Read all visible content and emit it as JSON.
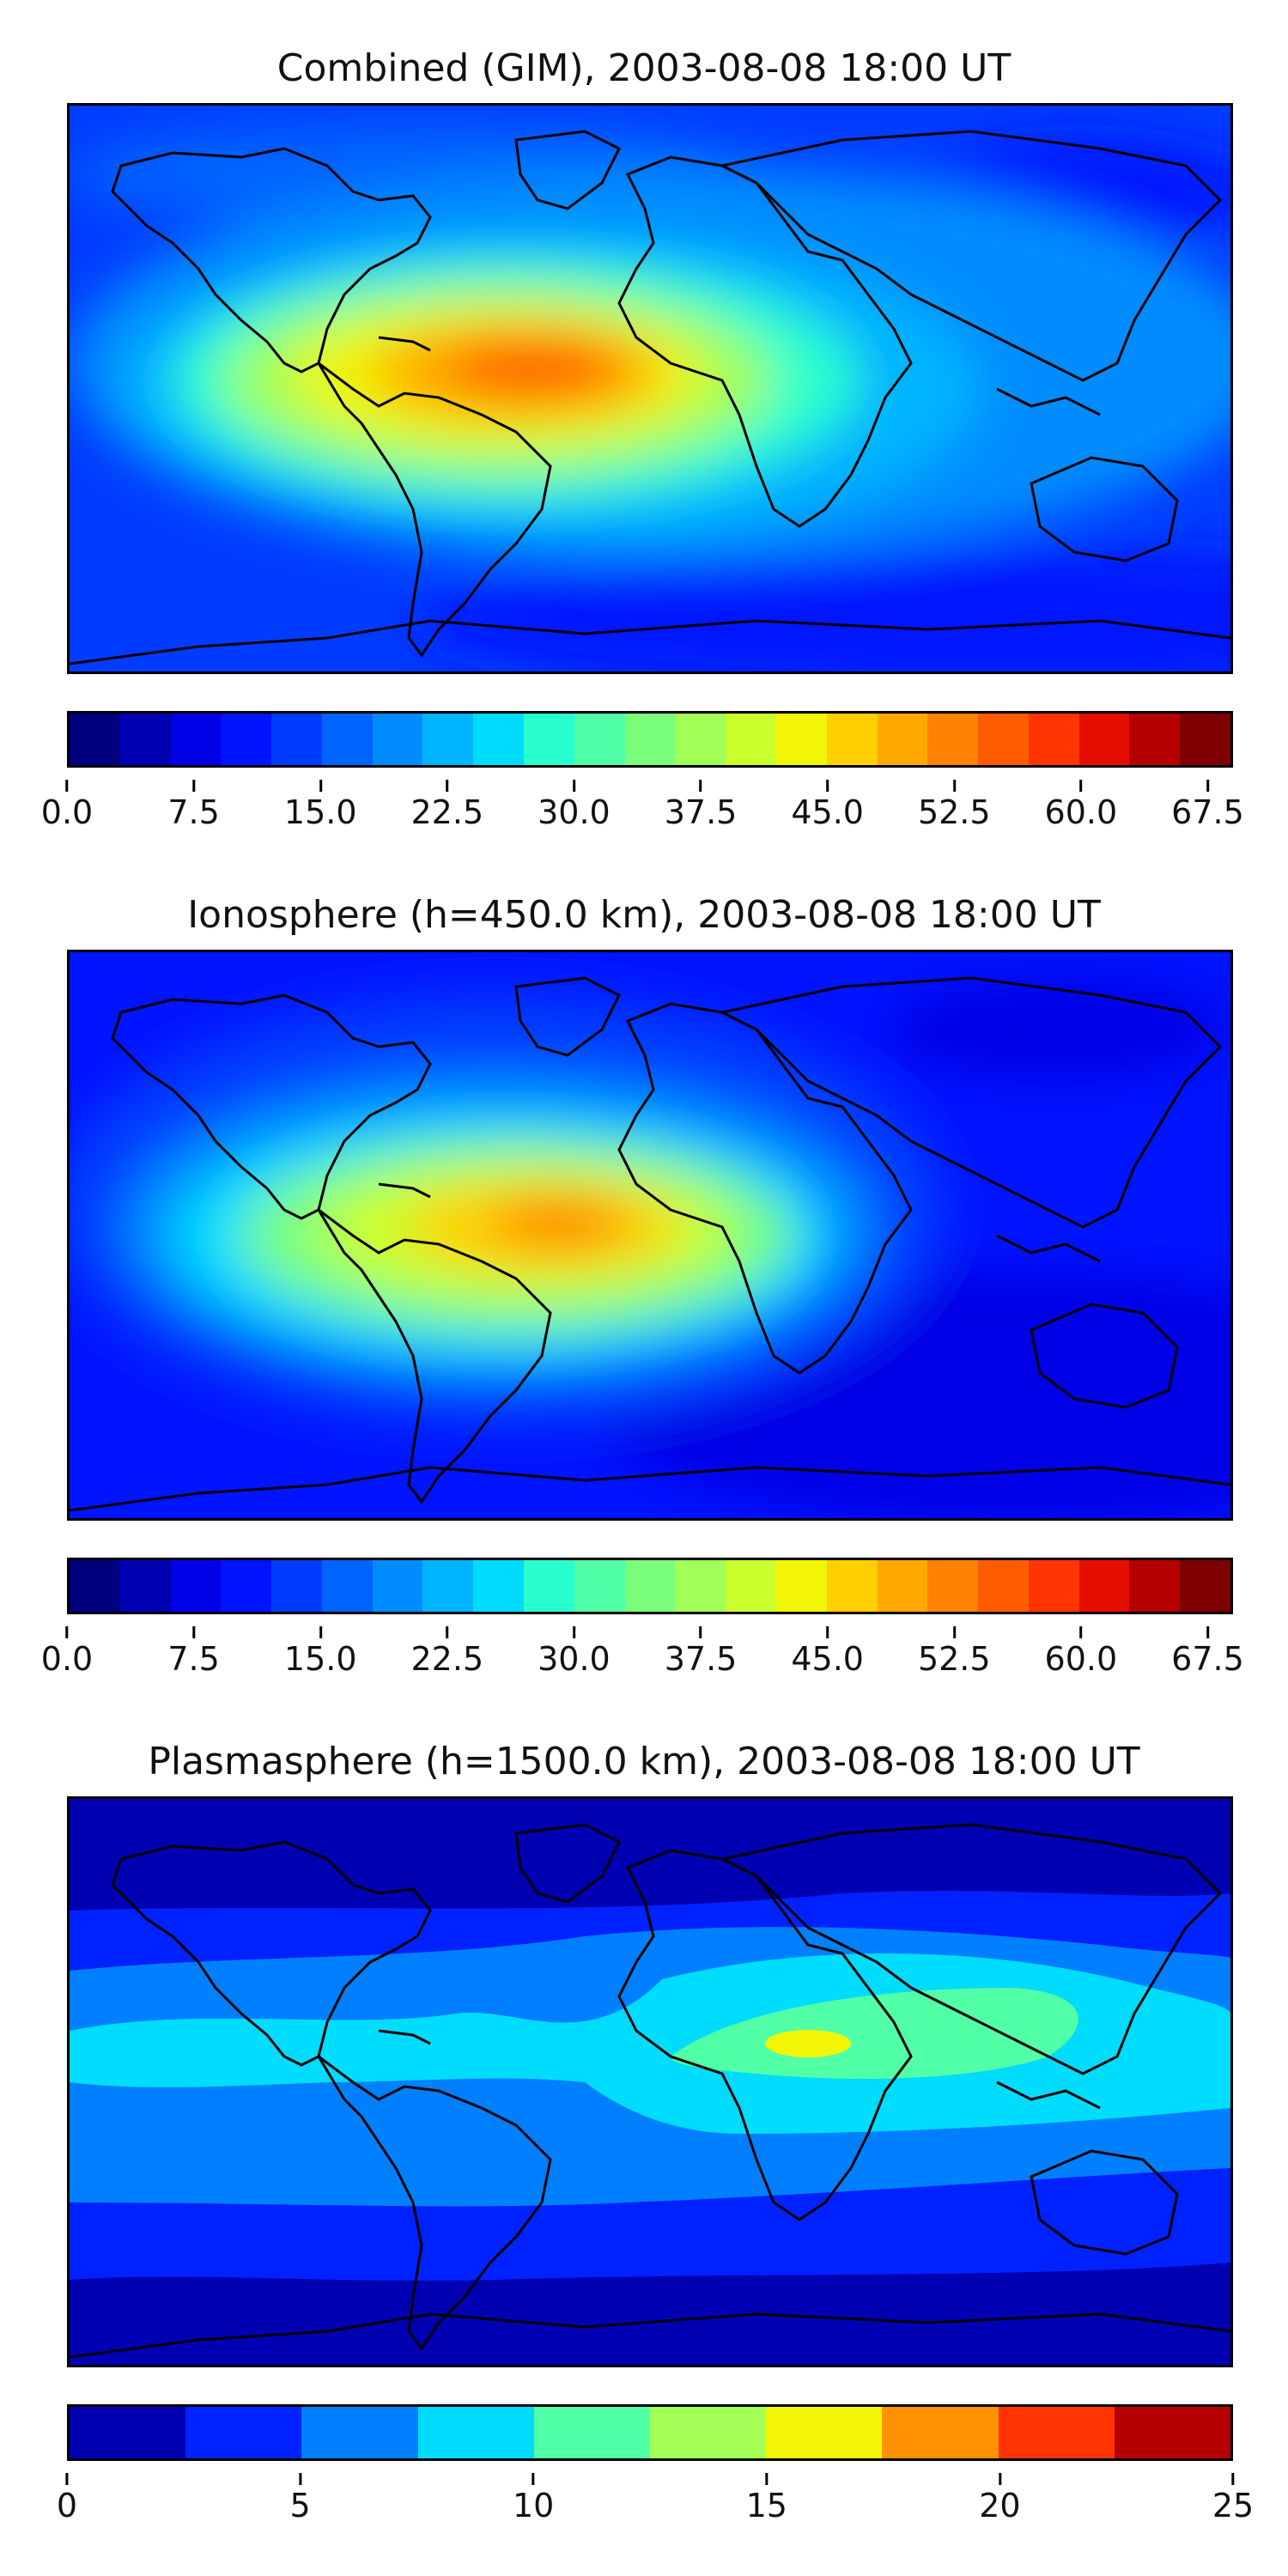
{
  "panels": [
    {
      "title": "Combined (GIM), 2003-08-08 18:00 UT",
      "colorbar": {
        "colors": [
          "#00007f",
          "#0000b3",
          "#0000e6",
          "#0014ff",
          "#003cff",
          "#0064ff",
          "#008cff",
          "#00b4ff",
          "#00dcfe",
          "#29ffce",
          "#51ffa6",
          "#7aff7d",
          "#a2ff55",
          "#caff2d",
          "#f2f505",
          "#ffcf00",
          "#ffa800",
          "#ff8200",
          "#ff5b00",
          "#ff3400",
          "#e60e00",
          "#b40000",
          "#7f0000"
        ],
        "ticks": [
          "0.0",
          "7.5",
          "15.0",
          "22.5",
          "30.0",
          "37.5",
          "45.0",
          "52.5",
          "60.0",
          "67.5"
        ],
        "min": 0,
        "max": 69,
        "tick_values": [
          0,
          7.5,
          15,
          22.5,
          30,
          37.5,
          45,
          52.5,
          60,
          67.5
        ]
      }
    },
    {
      "title": "Ionosphere  (h=450.0 km), 2003-08-08 18:00 UT",
      "colorbar": {
        "colors": [
          "#00007f",
          "#0000b3",
          "#0000e6",
          "#0014ff",
          "#003cff",
          "#0064ff",
          "#008cff",
          "#00b4ff",
          "#00dcfe",
          "#29ffce",
          "#51ffa6",
          "#7aff7d",
          "#a2ff55",
          "#caff2d",
          "#f2f505",
          "#ffcf00",
          "#ffa800",
          "#ff8200",
          "#ff5b00",
          "#ff3400",
          "#e60e00",
          "#b40000",
          "#7f0000"
        ],
        "ticks": [
          "0.0",
          "7.5",
          "15.0",
          "22.5",
          "30.0",
          "37.5",
          "45.0",
          "52.5",
          "60.0",
          "67.5"
        ],
        "min": 0,
        "max": 69,
        "tick_values": [
          0,
          7.5,
          15,
          22.5,
          30,
          37.5,
          45,
          52.5,
          60,
          67.5
        ]
      }
    },
    {
      "title": "Plasmasphere (h=1500.0 km), 2003-08-08 18:00 UT",
      "colorbar": {
        "colors": [
          "#0000b3",
          "#0022ff",
          "#0080ff",
          "#00dcfe",
          "#51ffa6",
          "#a2ff55",
          "#f2f505",
          "#ff9100",
          "#ff3400",
          "#b40000"
        ],
        "ticks": [
          "0",
          "5",
          "10",
          "15",
          "20",
          "25"
        ],
        "min": 0,
        "max": 25,
        "tick_values": [
          0,
          5,
          10,
          15,
          20,
          25
        ]
      }
    }
  ]
}
